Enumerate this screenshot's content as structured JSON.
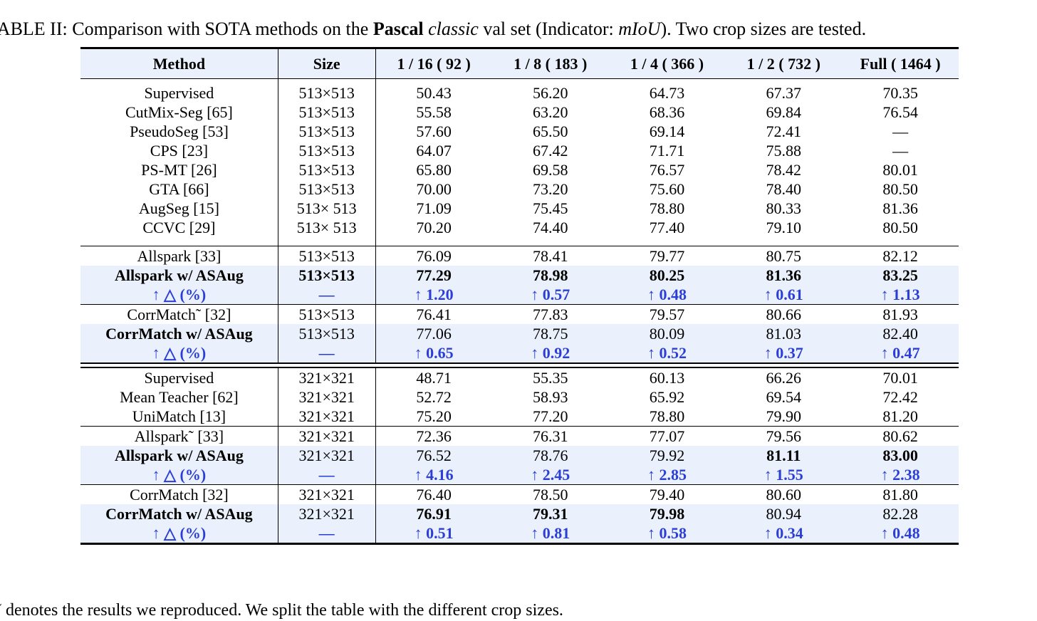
{
  "caption": {
    "prefix": "TABLE II: Comparison with SOTA methods on the ",
    "dataset": "Pascal",
    "space": " ",
    "subset": "classic",
    "middle": " val set (Indicator: ",
    "metric": "mIoU",
    "suffix": "). Two crop sizes are tested."
  },
  "table": {
    "headers": [
      "Method",
      "Size",
      "1 / 16 ( 92 )",
      "1 / 8 ( 183 )",
      "1 / 4 ( 366 )",
      "1 / 2 ( 732 )",
      "Full ( 1464 )"
    ],
    "groups": {
      "g1": [
        [
          "Supervised",
          "513×513",
          "50.43",
          "56.20",
          "64.73",
          "67.37",
          "70.35"
        ],
        [
          "CutMix-Seg [65]",
          "513×513",
          "55.58",
          "63.20",
          "68.36",
          "69.84",
          "76.54"
        ],
        [
          "PseudoSeg [53]",
          "513×513",
          "57.60",
          "65.50",
          "69.14",
          "72.41",
          "—"
        ],
        [
          "CPS [23]",
          "513×513",
          "64.07",
          "67.42",
          "71.71",
          "75.88",
          "—"
        ],
        [
          "PS-MT [26]",
          "513×513",
          "65.80",
          "69.58",
          "76.57",
          "78.42",
          "80.01"
        ],
        [
          "GTA [66]",
          "513×513",
          "70.00",
          "73.20",
          "75.60",
          "78.40",
          "80.50"
        ],
        [
          "AugSeg [15]",
          "513× 513",
          "71.09",
          "75.45",
          "78.80",
          "80.33",
          "81.36"
        ],
        [
          "CCVC [29]",
          "513× 513",
          "70.20",
          "74.40",
          "77.40",
          "79.10",
          "80.50"
        ]
      ],
      "g2": [
        [
          "Allspark [33]",
          "513×513",
          "76.09",
          "78.41",
          "79.77",
          "80.75",
          "82.12"
        ],
        [
          "Allspark w/ ASAug",
          "513×513",
          "77.29",
          "78.98",
          "80.25",
          "81.36",
          "83.25"
        ],
        [
          "↑ △ (%)",
          "—",
          "↑ 1.20",
          "↑ 0.57",
          "↑ 0.48",
          "↑ 0.61",
          "↑ 1.13"
        ]
      ],
      "g3": [
        [
          "CorrMatch˜ [32]",
          "513×513",
          "76.41",
          "77.83",
          "79.57",
          "80.66",
          "81.93"
        ],
        [
          "CorrMatch w/ ASAug",
          "513×513",
          "77.06",
          "78.75",
          "80.09",
          "81.03",
          "82.40"
        ],
        [
          "↑ △ (%)",
          "—",
          "↑ 0.65",
          "↑ 0.92",
          "↑ 0.52",
          "↑ 0.37",
          "↑ 0.47"
        ]
      ],
      "g4": [
        [
          "Supervised",
          "321×321",
          "48.71",
          "55.35",
          "60.13",
          "66.26",
          "70.01"
        ],
        [
          "Mean Teacher [62]",
          "321×321",
          "52.72",
          "58.93",
          "65.92",
          "69.54",
          "72.42"
        ],
        [
          "UniMatch [13]",
          "321×321",
          "75.20",
          "77.20",
          "78.80",
          "79.90",
          "81.20"
        ]
      ],
      "g5": [
        [
          "Allspark˜ [33]",
          "321×321",
          "72.36",
          "76.31",
          "77.07",
          "79.56",
          "80.62"
        ],
        [
          "Allspark w/ ASAug",
          "321×321",
          "76.52",
          "78.76",
          "79.92",
          "81.11",
          "83.00"
        ],
        [
          "↑ △ (%)",
          "—",
          "↑ 4.16",
          "↑ 2.45",
          "↑ 2.85",
          "↑ 1.55",
          "↑ 2.38"
        ]
      ],
      "g6": [
        [
          "CorrMatch [32]",
          "321×321",
          "76.40",
          "78.50",
          "79.40",
          "80.60",
          "81.80"
        ],
        [
          "CorrMatch w/ ASAug",
          "321×321",
          "76.91",
          "79.31",
          "79.98",
          "80.94",
          "82.28"
        ],
        [
          "↑ △ (%)",
          "—",
          "↑ 0.51",
          "↑ 0.81",
          "↑ 0.58",
          "↑ 0.34",
          "↑ 0.48"
        ]
      ]
    }
  },
  "footnote": "˜ denotes the results we reproduced. We split the table with the different crop sizes.",
  "colors": {
    "highlight_bg": "#eaf1fc",
    "delta_text": "#2b3fd6"
  }
}
